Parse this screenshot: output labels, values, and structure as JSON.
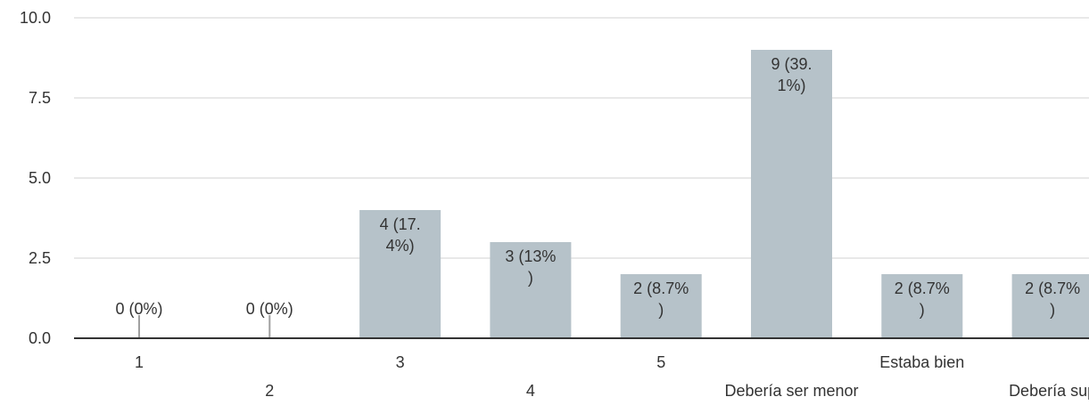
{
  "chart_data": {
    "type": "bar",
    "categories": [
      "1",
      "2",
      "3",
      "4",
      "5",
      "Debería ser menor",
      "Estaba bien",
      "Debería sup"
    ],
    "values": [
      0,
      0,
      4,
      3,
      2,
      9,
      2,
      2
    ],
    "bar_labels": [
      [
        "0 (0%)"
      ],
      [
        "0 (0%)"
      ],
      [
        "4 (17.",
        "4%)"
      ],
      [
        "3 (13%",
        ")"
      ],
      [
        "2 (8.7%",
        ")"
      ],
      [
        "9 (39.",
        "1%)"
      ],
      [
        "2 (8.7%",
        ")"
      ],
      [
        "2 (8.7%",
        ")"
      ]
    ],
    "y_ticks": [
      "0.0",
      "2.5",
      "5.0",
      "7.5",
      "10.0"
    ],
    "ylim": [
      0,
      10
    ],
    "grid": true,
    "colors": {
      "bar": "#b6c2c9",
      "grid": "#e8e8e8",
      "axis": "#333333",
      "zero_marker": "#a0a0a0"
    }
  }
}
